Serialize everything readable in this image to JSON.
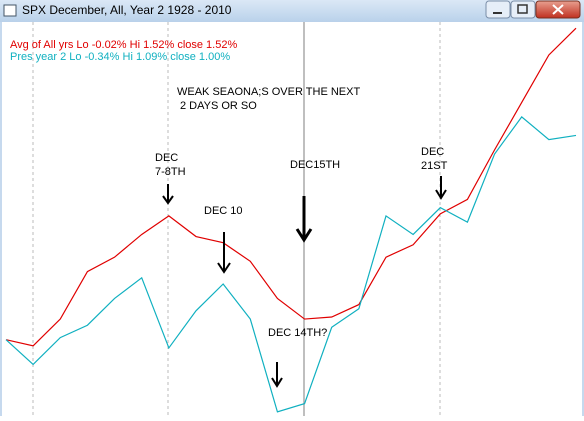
{
  "window": {
    "title": "SPX December,  All,  Year 2   1928 -  2010"
  },
  "chart_data": {
    "type": "line",
    "series": [
      {
        "name": "Avg of All yrs  Lo -0.02%  Hi 1.52%  close 1.52%",
        "color": "#e00000",
        "values": [
          0.01,
          -0.02,
          0.11,
          0.34,
          0.41,
          0.52,
          0.61,
          0.51,
          0.48,
          0.39,
          0.21,
          0.11,
          0.12,
          0.18,
          0.41,
          0.47,
          0.62,
          0.69,
          0.93,
          1.16,
          1.39,
          1.52
        ]
      },
      {
        "name": "Pres year 2  Lo -0.34%  Hi 1.09%  close 1.00%",
        "color": "#10b0c0",
        "values": [
          0.01,
          -0.11,
          0.02,
          0.08,
          0.21,
          0.31,
          -0.03,
          0.15,
          0.28,
          0.11,
          -0.34,
          -0.3,
          0.07,
          0.16,
          0.61,
          0.52,
          0.65,
          0.58,
          0.91,
          1.09,
          0.98,
          1.0
        ]
      }
    ],
    "ylim": [
      -0.36,
      1.55
    ],
    "annotations": [
      "WEAK SEAONA;S OVER THE NEXT",
      "2 DAYS OR SO",
      "DEC",
      "7-8TH",
      "DEC 10",
      "DEC15TH",
      "DEC 14TH?",
      "DEC",
      "21ST"
    ]
  }
}
